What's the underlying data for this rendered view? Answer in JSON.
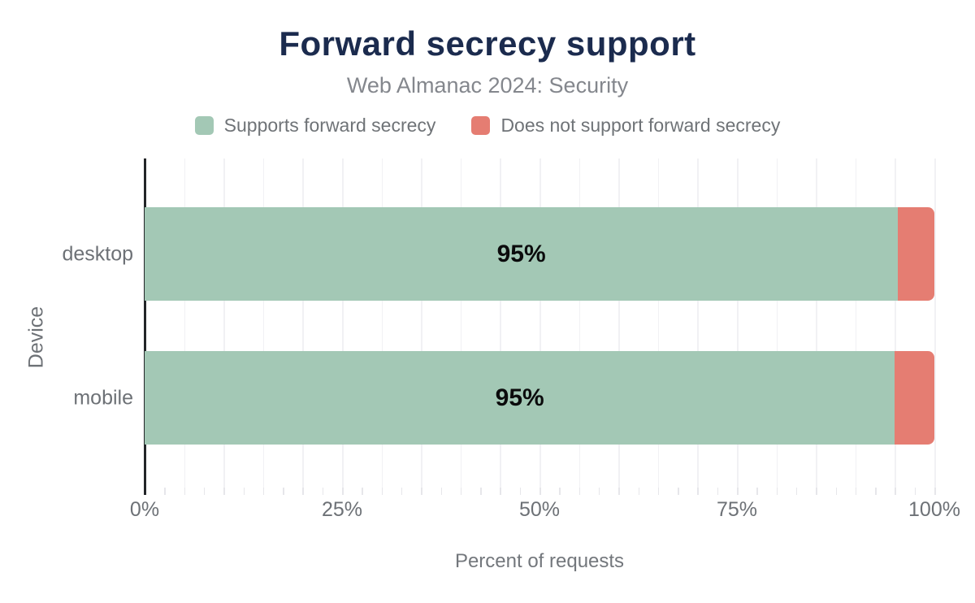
{
  "chart_data": {
    "type": "bar",
    "orientation": "horizontal",
    "stacked": true,
    "title": "Forward secrecy support",
    "subtitle": "Web Almanac 2024: Security",
    "categories": [
      "desktop",
      "mobile"
    ],
    "series": [
      {
        "name": "Supports forward secrecy",
        "color": "#a3c8b5",
        "values": [
          95.4,
          95.0
        ],
        "data_labels": [
          "95%",
          "95%"
        ]
      },
      {
        "name": "Does not support forward secrecy",
        "color": "#e57d72",
        "values": [
          4.6,
          5.0
        ],
        "data_labels": [
          "",
          ""
        ]
      }
    ],
    "xlabel": "Percent of requests",
    "ylabel": "Device",
    "xlim": [
      0,
      100
    ],
    "x_ticks": [
      {
        "value": 0,
        "label": "0%"
      },
      {
        "value": 25,
        "label": "25%"
      },
      {
        "value": 50,
        "label": "50%"
      },
      {
        "value": 75,
        "label": "75%"
      },
      {
        "value": 100,
        "label": "100%"
      }
    ],
    "grid": {
      "gridline_step_pct": 5,
      "minor_tick_step_pct": 2.5,
      "gridlines_on": true,
      "legend_position": "top"
    },
    "colors": {
      "title": "#1b2b4e",
      "subtitle": "#84878d",
      "axis_text": "#6d7176",
      "axis_line": "#232528",
      "gridline": "#f1f1f4",
      "data_label": "#0b0b0c",
      "background": "#ffffff"
    }
  }
}
